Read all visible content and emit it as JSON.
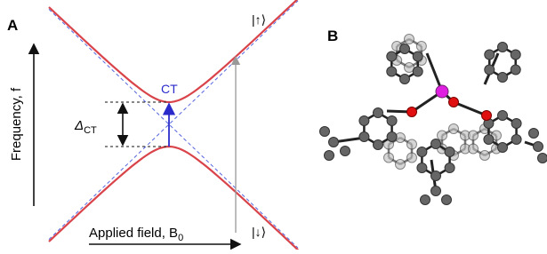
{
  "panel_a": {
    "label": "A",
    "upper_state": "|↑⟩",
    "lower_state": "|↓⟩",
    "arrow_label": "CT",
    "gap_label": {
      "symbol": "Δ",
      "subscript": "CT"
    },
    "y_axis_label": "Frequency, f",
    "x_axis_label": {
      "text": "Applied field, B",
      "subscript": "0"
    }
  },
  "panel_b": {
    "label": "B"
  }
}
